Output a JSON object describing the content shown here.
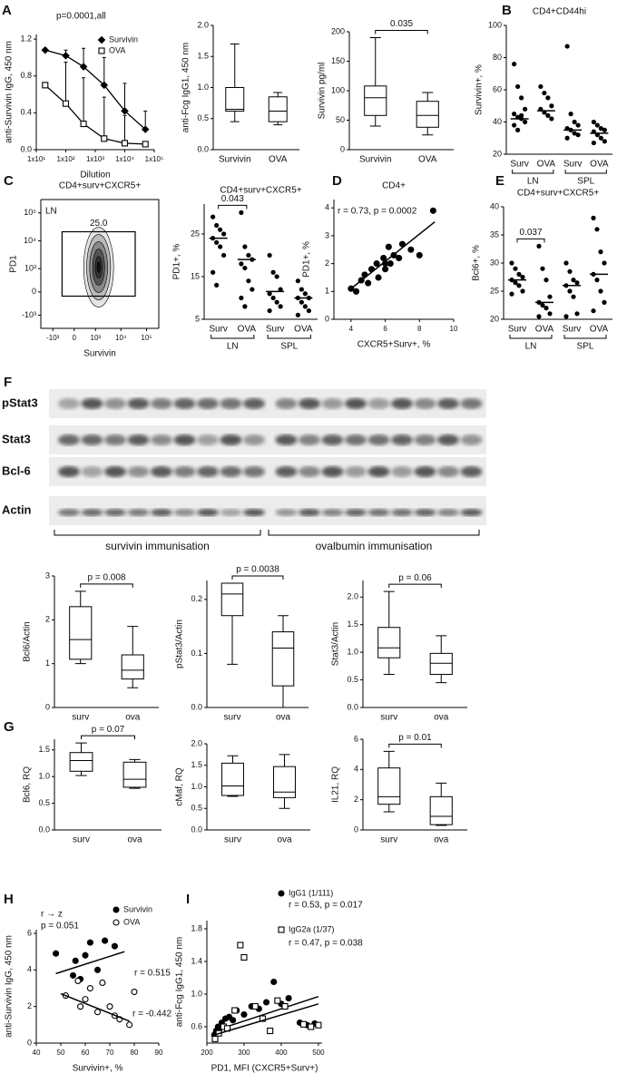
{
  "chart_data": [
    {
      "type": "line",
      "panel": "A",
      "annotations": [
        "p=0.0001,all"
      ],
      "ylabel": "anti-Survivin IgG, 450 nm",
      "xlabel": "Dilution",
      "xscale": "log",
      "xlim": [
        10,
        100000
      ],
      "xticks": [
        {
          "value": 10,
          "label": "1x10¹"
        },
        {
          "value": 100,
          "label": "1x10²"
        },
        {
          "value": 1000,
          "label": "1x10³"
        },
        {
          "value": 10000,
          "label": "1x10⁴"
        },
        {
          "value": 100000,
          "label": "1x10⁵"
        }
      ],
      "ylim": [
        0,
        1.25
      ],
      "yticks": [
        {
          "value": 0,
          "label": "0.0"
        },
        0.4,
        0.8,
        1.2
      ],
      "x": [
        20,
        100,
        400,
        2000,
        10000,
        50000
      ],
      "legend": "upper right",
      "series": [
        {
          "name": "Survivin",
          "marker": "filled-diamond",
          "color": "#000000",
          "values": [
            1.08,
            1.02,
            0.9,
            0.7,
            0.42,
            0.22
          ],
          "errors": [
            0.02,
            0.06,
            0.2,
            0.3,
            0.3,
            0.2
          ]
        },
        {
          "name": "OVA",
          "marker": "open-square",
          "color": "#000000",
          "values": [
            0.7,
            0.5,
            0.28,
            0.12,
            0.07,
            0.06
          ],
          "errors": [
            0,
            0.45,
            0.5,
            0.45,
            0.3,
            0
          ]
        }
      ]
    },
    {
      "type": "box",
      "ylabel": "anti-Fcg IgG1, 450 nm",
      "categories": [
        "Survivin",
        "OVA"
      ],
      "ylim": [
        0,
        2
      ],
      "yticks": [
        {
          "value": 0,
          "label": "0.0"
        },
        0.5,
        {
          "value": 1,
          "label": "1.0"
        },
        1.5,
        {
          "value": 2,
          "label": "2.0"
        }
      ],
      "boxes": [
        [
          0.45,
          0.62,
          0.65,
          1.0,
          1.7
        ],
        [
          0.4,
          0.45,
          0.62,
          0.85,
          0.92
        ]
      ]
    },
    {
      "type": "box",
      "ylabel": "Survivin pg/ml",
      "categories": [
        "Survivin",
        "OVA"
      ],
      "ylim": [
        0,
        200
      ],
      "yticks": [
        0,
        50,
        100,
        150,
        200
      ],
      "boxes": [
        [
          40,
          58,
          88,
          108,
          190
        ],
        [
          25,
          38,
          58,
          82,
          97
        ]
      ],
      "comparison": "0.035"
    },
    {
      "type": "strip",
      "panel": "B",
      "title": "CD4+CD44hi",
      "ylabel": "Survivin+, %",
      "ylim": [
        20,
        100
      ],
      "yticks": [
        20,
        40,
        60,
        80,
        100
      ],
      "categories": [
        "Surv",
        "OVA",
        "Surv",
        "OVA"
      ],
      "groups": [
        "LN",
        "SPL"
      ],
      "points": [
        [
          76,
          62,
          55,
          48,
          45,
          43,
          42,
          40,
          38,
          35,
          44
        ],
        [
          62,
          58,
          55,
          50,
          48,
          46,
          44,
          42
        ],
        [
          87,
          45,
          40,
          38,
          36,
          35,
          33,
          32,
          30
        ],
        [
          40,
          38,
          36,
          35,
          34,
          32,
          30,
          28,
          27
        ]
      ],
      "medians": [
        42,
        47,
        35,
        33
      ]
    },
    {
      "type": "density",
      "panel": "C",
      "title": "CD4+surv+CXCR5+",
      "annotations": [
        "LN"
      ],
      "values": [
        25
      ],
      "value_labels": [
        "25.0"
      ],
      "xlabel": "Survivin",
      "ylabel": "PD1",
      "xscale": "asinh",
      "yscale": "asinh",
      "xlim": [
        -3000,
        300000
      ],
      "ylim": [
        -3000,
        300000
      ],
      "xticks": [
        {
          "value": -1000,
          "label": "-10³"
        },
        0,
        {
          "value": 1000,
          "label": "10³"
        },
        {
          "value": 10000,
          "label": "10⁴"
        },
        {
          "value": 100000,
          "label": "10⁵"
        }
      ],
      "yticks": [
        {
          "value": -1000,
          "label": "-10³"
        },
        0,
        {
          "value": 1000,
          "label": "10³"
        },
        {
          "value": 10000,
          "label": "10⁴"
        },
        {
          "value": 100000,
          "label": "10⁵"
        }
      ]
    },
    {
      "type": "strip",
      "title": "CD4+surv+CXCR5+",
      "ylabel": "PD1+, %",
      "ylim": [
        5,
        32
      ],
      "yticks": [
        5,
        15,
        25
      ],
      "categories": [
        "Surv",
        "OVA",
        "Surv",
        "OVA"
      ],
      "groups": [
        "LN",
        "SPL"
      ],
      "points": [
        [
          29,
          27,
          26,
          25,
          24,
          23,
          22,
          20,
          16,
          13
        ],
        [
          30,
          22,
          20,
          19,
          18,
          17,
          14,
          12,
          10,
          8
        ],
        [
          20,
          16,
          15,
          12,
          11,
          10,
          9,
          8,
          7
        ],
        [
          14,
          12,
          11,
          10,
          10,
          9,
          8,
          7,
          6
        ]
      ],
      "medians": [
        24,
        19,
        11.5,
        10
      ],
      "comparison": "0.043"
    },
    {
      "type": "scatter",
      "panel": "D",
      "title": "CD4+",
      "annotations": [
        "r = 0.73, p = 0.0002"
      ],
      "xlabel": "CXCR5+Surv+, %",
      "ylabel": "PD1+, %",
      "xlim": [
        3,
        10
      ],
      "xticks": [
        4,
        6,
        8,
        10
      ],
      "ylim": [
        0,
        4.3
      ],
      "yticks": [
        0,
        1,
        2,
        3,
        4
      ],
      "series": [
        {
          "marker": "filled-circle",
          "color": "#000000",
          "x": [
            4,
            4.3,
            4.6,
            4.8,
            5,
            5.2,
            5.5,
            5.6,
            5.9,
            6,
            6.2,
            6.3,
            6.5,
            6.8,
            7,
            7.5,
            8,
            8.8,
            6
          ],
          "values": [
            1.1,
            1.0,
            1.4,
            1.6,
            1.3,
            1.8,
            2.0,
            1.5,
            2.2,
            1.8,
            2.6,
            2.0,
            2.3,
            2.2,
            2.7,
            2.5,
            2.3,
            3.9,
            2.0
          ],
          "trend_x": [
            4,
            8.9
          ],
          "trend_y": [
            1.1,
            3.5
          ]
        }
      ]
    },
    {
      "type": "strip",
      "panel": "E",
      "title": "CD4+surv+CXCR5+",
      "ylabel": "Bcl6+, %",
      "ylim": [
        20,
        40
      ],
      "yticks": [
        20,
        25,
        30,
        35,
        40
      ],
      "categories": [
        "Surv",
        "OVA",
        "Surv",
        "OVA"
      ],
      "groups": [
        "LN",
        "SPL"
      ],
      "points": [
        [
          30,
          29,
          28,
          27.5,
          27,
          26.5,
          26,
          25,
          24.5
        ],
        [
          33,
          29,
          27,
          24,
          23,
          22.5,
          22,
          21,
          20.5
        ],
        [
          30,
          28.5,
          27,
          26.5,
          26,
          25,
          24,
          21,
          20.5
        ],
        [
          38,
          36,
          32,
          30,
          28,
          27,
          25,
          23,
          21.5
        ]
      ],
      "medians": [
        27,
        23,
        26,
        28
      ],
      "comparison": "0.037"
    },
    {
      "type": "box",
      "ylabel": "Bcl6/Actin",
      "categories": [
        "surv",
        "ova"
      ],
      "ylim": [
        0,
        3
      ],
      "yticks": [
        0,
        1,
        2,
        3
      ],
      "boxes": [
        [
          1.0,
          1.1,
          1.55,
          2.3,
          2.65
        ],
        [
          0.45,
          0.65,
          0.85,
          1.2,
          1.85
        ]
      ],
      "comparison": "p = 0.008"
    },
    {
      "type": "box",
      "ylabel": "pStat3/Actin",
      "categories": [
        "surv",
        "ova"
      ],
      "ylim": [
        0,
        0.235
      ],
      "yticks": [
        {
          "value": 0,
          "label": "0.0"
        },
        0.1,
        0.2
      ],
      "boxes": [
        [
          0.08,
          0.17,
          0.21,
          0.23,
          0.23
        ],
        [
          0,
          0.04,
          0.11,
          0.14,
          0.17
        ]
      ],
      "comparison": "p = 0.0038"
    },
    {
      "type": "box",
      "ylabel": "Stat3/Actin",
      "categories": [
        "surv",
        "ova"
      ],
      "ylim": [
        0,
        2.3
      ],
      "yticks": [
        {
          "value": 0,
          "label": "0.0"
        },
        0.5,
        {
          "value": 1,
          "label": "1.0"
        },
        1.5,
        {
          "value": 2,
          "label": "2.0"
        }
      ],
      "boxes": [
        [
          0.6,
          0.9,
          1.08,
          1.45,
          2.1
        ],
        [
          0.45,
          0.6,
          0.8,
          0.98,
          1.3
        ]
      ],
      "comparison": "p = 0.06"
    },
    {
      "type": "box",
      "panel": "G",
      "ylabel": "Bcl6, RQ",
      "categories": [
        "surv",
        "ova"
      ],
      "ylim": [
        0,
        1.7
      ],
      "yticks": [
        {
          "value": 0,
          "label": "0.0"
        },
        0.5,
        {
          "value": 1,
          "label": "1.0"
        },
        1.5
      ],
      "boxes": [
        [
          1.02,
          1.1,
          1.3,
          1.45,
          1.63
        ],
        [
          0.78,
          0.8,
          0.95,
          1.27,
          1.32
        ]
      ],
      "comparison": "p = 0.07"
    },
    {
      "type": "box",
      "ylabel": "cMaf, RQ",
      "categories": [
        "surv",
        "ova"
      ],
      "ylim": [
        0,
        2
      ],
      "yticks": [
        {
          "value": 0,
          "label": "0.0"
        },
        0.5,
        {
          "value": 1,
          "label": "1.0"
        },
        1.5,
        {
          "value": 2,
          "label": "2.0"
        }
      ],
      "boxes": [
        [
          0.78,
          0.8,
          1.02,
          1.55,
          1.72
        ],
        [
          0.5,
          0.75,
          0.88,
          1.47,
          1.75
        ]
      ]
    },
    {
      "type": "box",
      "ylabel": "IL21, RQ",
      "categories": [
        "surv",
        "ova"
      ],
      "ylim": [
        0,
        6
      ],
      "yticks": [
        0,
        2,
        4,
        6
      ],
      "boxes": [
        [
          1.2,
          1.7,
          2.2,
          4.1,
          5.2
        ],
        [
          0.3,
          0.35,
          0.9,
          2.2,
          3.1
        ]
      ],
      "comparison": "p = 0.01"
    },
    {
      "type": "scatter",
      "panel": "H",
      "annotations": [
        "r → z",
        "p = 0.051",
        "r = 0.515",
        "r = -0.442"
      ],
      "xlabel": "Survivin+, %",
      "ylabel": "anti-Survivin IgG, 450 nm",
      "xlim": [
        40,
        90
      ],
      "xticks": [
        40,
        50,
        60,
        70,
        80,
        90
      ],
      "ylim": [
        0,
        6.2
      ],
      "yticks": [
        0,
        2,
        4,
        6
      ],
      "legend": "upper right",
      "series": [
        {
          "name": "Survivin",
          "marker": "filled-circle",
          "color": "#000000",
          "x": [
            48,
            56,
            60,
            62,
            65,
            68,
            72,
            58,
            55
          ],
          "values": [
            4.9,
            4.5,
            4.8,
            5.5,
            4.0,
            5.6,
            5.3,
            3.5,
            3.7
          ],
          "trend_x": [
            48,
            76
          ],
          "trend_y": [
            3.8,
            5.0
          ]
        },
        {
          "name": "OVA",
          "marker": "open-circle",
          "color": "#000000",
          "x": [
            52,
            57,
            60,
            62,
            67,
            70,
            72,
            74,
            78,
            80,
            58,
            65
          ],
          "values": [
            2.6,
            3.4,
            2.4,
            3.0,
            3.3,
            2.0,
            1.5,
            1.3,
            1.0,
            2.8,
            2.0,
            1.7
          ],
          "trend_x": [
            50,
            78
          ],
          "trend_y": [
            2.7,
            1.2
          ]
        }
      ]
    },
    {
      "type": "scatter",
      "panel": "I",
      "annotations": [
        "r = 0.53, p = 0.017",
        "r = 0.47, p = 0.038"
      ],
      "xlabel": "PD1, MFI (CXCR5+Surv+)",
      "ylabel": "anti-Fcg IgG1, 450 nm",
      "xlim": [
        200,
        510
      ],
      "xticks": [
        200,
        300,
        400,
        500
      ],
      "ylim": [
        0.4,
        1.9
      ],
      "yticks": [
        0.6,
        {
          "value": 1,
          "label": "1.0"
        },
        1.4,
        1.8
      ],
      "legend": "upper left",
      "series": [
        {
          "name": "IgG1 (1/111)",
          "marker": "filled-circle",
          "color": "#000000",
          "x": [
            220,
            225,
            230,
            235,
            240,
            250,
            260,
            270,
            280,
            300,
            320,
            340,
            360,
            380,
            400,
            420,
            450,
            470,
            490
          ],
          "values": [
            0.5,
            0.55,
            0.6,
            0.58,
            0.65,
            0.7,
            0.72,
            0.68,
            0.8,
            0.75,
            0.85,
            0.82,
            0.9,
            1.15,
            0.88,
            0.95,
            0.65,
            0.62,
            0.64
          ],
          "trend_x": [
            220,
            500
          ],
          "trend_y": [
            0.55,
            0.97
          ]
        },
        {
          "name": "IgG2a (1/37)",
          "marker": "open-square",
          "color": "#000000",
          "x": [
            222,
            232,
            245,
            255,
            275,
            290,
            300,
            330,
            350,
            370,
            390,
            410,
            460,
            480,
            500
          ],
          "values": [
            0.45,
            0.52,
            0.6,
            0.58,
            0.8,
            1.6,
            1.45,
            0.85,
            0.7,
            0.55,
            0.92,
            0.85,
            0.63,
            0.6,
            0.62
          ],
          "trend_x": [
            220,
            500
          ],
          "trend_y": [
            0.5,
            0.88
          ]
        }
      ]
    }
  ],
  "blot": {
    "panel": "F",
    "rows": [
      "pStat3",
      "Stat3",
      "Bcl-6",
      "Actin"
    ],
    "groups": [
      "survivin immunisation",
      "ovalbumin immunisation"
    ]
  }
}
